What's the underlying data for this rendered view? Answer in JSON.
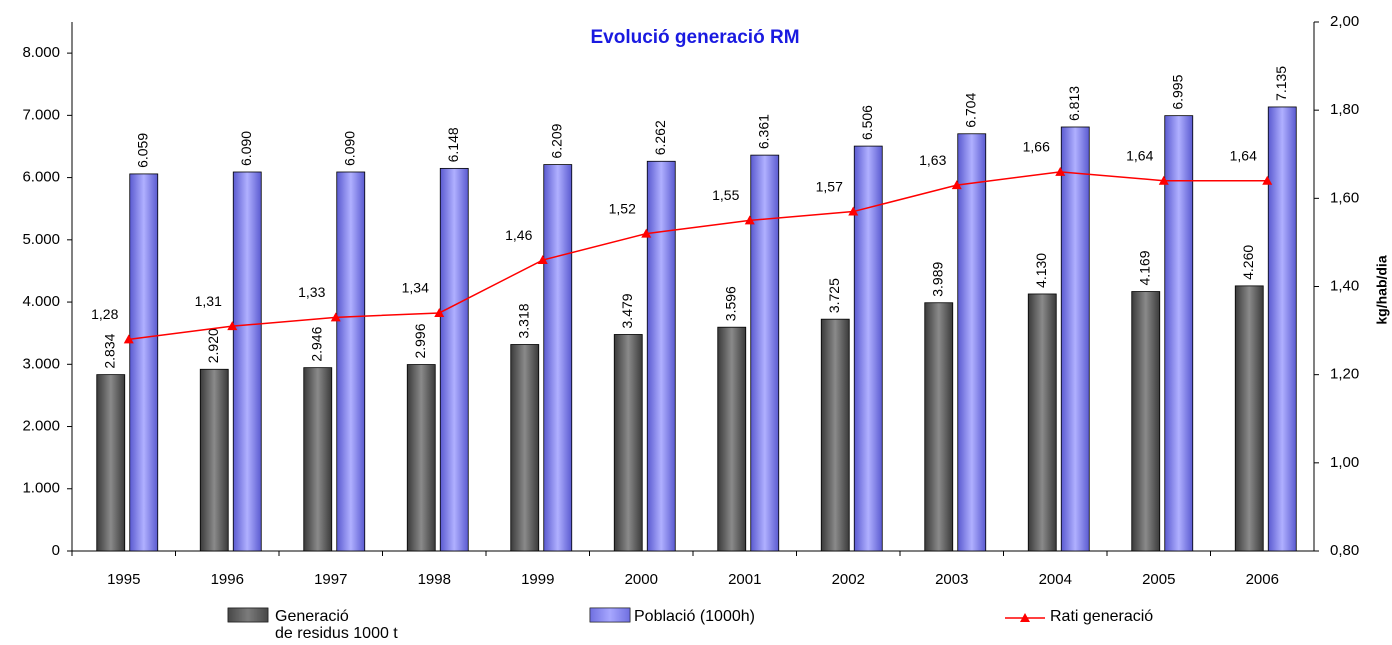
{
  "chart_data": {
    "type": "bar_line",
    "title": "Evolució generació RM",
    "y2_label": "kg/hab/dia",
    "categories": [
      "1995",
      "1996",
      "1997",
      "1998",
      "1999",
      "2000",
      "2001",
      "2002",
      "2003",
      "2004",
      "2005",
      "2006"
    ],
    "series": [
      {
        "name": "Generació\nde residus 1000 t",
        "type": "bar",
        "color": "#606060",
        "values": [
          2834,
          2920,
          2946,
          2996,
          3318,
          3479,
          3596,
          3725,
          3989,
          4130,
          4169,
          4260
        ],
        "value_labels": [
          "2.834",
          "2.920",
          "2.946",
          "2.996",
          "3.318",
          "3.479",
          "3.596",
          "3.725",
          "3.989",
          "4.130",
          "4.169",
          "4.260"
        ]
      },
      {
        "name": "Població (1000h)",
        "type": "bar",
        "color": "#9999ff",
        "values": [
          6059,
          6090,
          6090,
          6148,
          6209,
          6262,
          6361,
          6506,
          6704,
          6813,
          6995,
          7135
        ],
        "value_labels": [
          "6.059",
          "6.090",
          "6.090",
          "6.148",
          "6.209",
          "6.262",
          "6.361",
          "6.506",
          "6.704",
          "6.813",
          "6.995",
          "7.135"
        ]
      },
      {
        "name": "Rati generació",
        "type": "line",
        "axis": "y2",
        "color": "#ff0000",
        "values": [
          1.28,
          1.31,
          1.33,
          1.34,
          1.46,
          1.52,
          1.55,
          1.57,
          1.63,
          1.66,
          1.64,
          1.64
        ],
        "value_labels": [
          "1,28",
          "1,31",
          "1,33",
          "1,34",
          "1,46",
          "1,52",
          "1,55",
          "1,57",
          "1,63",
          "1,66",
          "1,64",
          "1,64"
        ]
      }
    ],
    "ylim": [
      0,
      8500
    ],
    "yticks": [
      0,
      {
        "value": 1000,
        "label": "1.000"
      },
      {
        "value": 2000,
        "label": "2.000"
      },
      {
        "value": 3000,
        "label": "3.000"
      },
      {
        "value": 4000,
        "label": "4.000"
      },
      {
        "value": 5000,
        "label": "5.000"
      },
      {
        "value": 6000,
        "label": "6.000"
      },
      {
        "value": 7000,
        "label": "7.000"
      },
      {
        "value": 8000,
        "label": "8.000"
      }
    ],
    "y2lim": [
      0.8,
      2.0
    ],
    "y2ticks": [
      {
        "value": 0.8,
        "label": "0,80"
      },
      {
        "value": 1.0,
        "label": "1,00"
      },
      {
        "value": 1.2,
        "label": "1,20"
      },
      {
        "value": 1.4,
        "label": "1,40"
      },
      {
        "value": 1.6,
        "label": "1,60"
      },
      {
        "value": 1.8,
        "label": "1,80"
      },
      {
        "value": 2.0,
        "label": "2,00"
      }
    ],
    "grid": false
  }
}
